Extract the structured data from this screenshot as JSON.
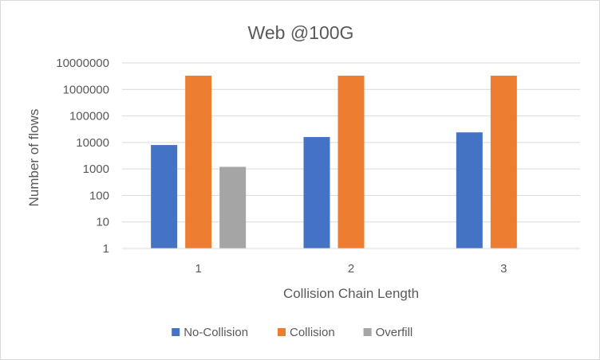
{
  "chart_data": {
    "type": "bar",
    "title": "Web @100G",
    "xlabel": "Collision Chain Length",
    "ylabel": "Number of flows",
    "yscale": "log",
    "ylim": [
      1,
      10000000
    ],
    "yticks": [
      "1",
      "10",
      "100",
      "1000",
      "10000",
      "100000",
      "1000000",
      "10000000"
    ],
    "categories": [
      "1",
      "2",
      "3"
    ],
    "series": [
      {
        "name": "No-Collision",
        "color": "#4472C4",
        "values": [
          8000,
          16000,
          24000
        ]
      },
      {
        "name": "Collision",
        "color": "#ED7D31",
        "values": [
          3300000,
          3300000,
          3300000
        ]
      },
      {
        "name": "Overfill",
        "color": "#A5A5A5",
        "values": [
          1200,
          null,
          null
        ]
      }
    ],
    "grid": true,
    "legend_position": "bottom"
  }
}
